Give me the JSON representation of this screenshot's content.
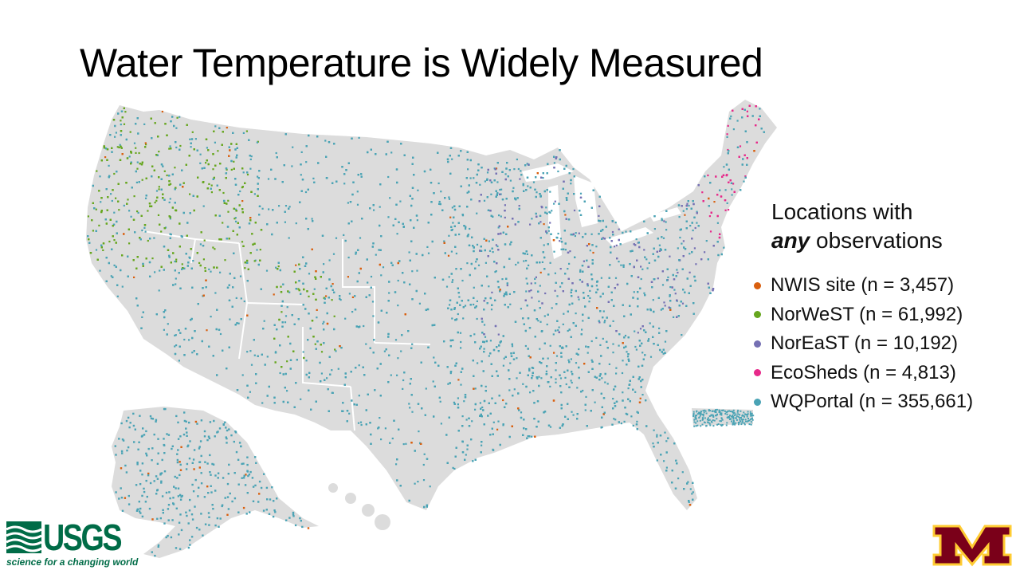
{
  "slide": {
    "title": "Water Temperature is Widely Measured"
  },
  "legend": {
    "heading_line1": "Locations with",
    "heading_emph": "any",
    "heading_line2_rest": " observations",
    "items": [
      {
        "label": "NWIS site (n = 3,457)",
        "color": "#d95f0e"
      },
      {
        "label": "NorWeST (n = 61,992)",
        "color": "#66a61e"
      },
      {
        "label": "NorEaST (n = 10,192)",
        "color": "#7570b3"
      },
      {
        "label": "EcoSheds (n = 4,813)",
        "color": "#e7298a"
      },
      {
        "label": "WQPortal (n = 355,661)",
        "color": "#4aa3b5"
      }
    ]
  },
  "map": {
    "land_color": "#dcdcdc",
    "state_border_color": "#ffffff",
    "regions": [
      "Contiguous US",
      "Alaska",
      "Hawaii",
      "Puerto Rico"
    ]
  },
  "logos": {
    "usgs": {
      "wordmark": "USGS",
      "tagline": "science for a changing world",
      "color": "#006c47"
    },
    "umn": {
      "glyph": "M",
      "fill": "#7a0019",
      "outline": "#ffcc33"
    }
  }
}
